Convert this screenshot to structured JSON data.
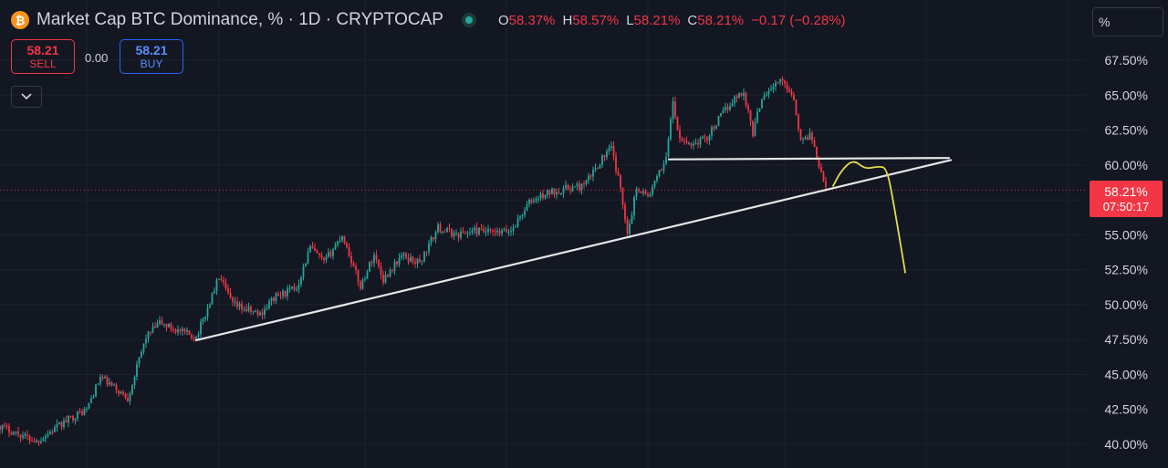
{
  "header": {
    "coin_icon": "bitcoin-icon",
    "coin_glyph": "₿",
    "title": "Market Cap BTC Dominance, % · 1D · CRYPTOCAP",
    "ohlc": {
      "o_label": "O",
      "o_value": "58.37%",
      "h_label": "H",
      "h_value": "58.57%",
      "l_label": "L",
      "l_value": "58.21%",
      "c_label": "C",
      "c_value": "58.21%",
      "change": "−0.17 (−0.28%)"
    }
  },
  "trade": {
    "sell_price": "58.21",
    "sell_label": "SELL",
    "spread": "0.00",
    "buy_price": "58.21",
    "buy_label": "BUY"
  },
  "scale_button": "%",
  "price_tag": {
    "value": "58.21%",
    "countdown": "07:50:17"
  },
  "colors": {
    "up": "#26a69a",
    "down": "#f23645",
    "background": "#131722",
    "trendline": "#e6e6e6",
    "projection": "#e2dc4c"
  },
  "chart_data": {
    "type": "candlestick",
    "ylim": [
      39.3,
      69.3
    ],
    "y_ticks": [
      "40.00%",
      "42.50%",
      "45.00%",
      "47.50%",
      "50.00%",
      "52.50%",
      "55.00%",
      "57.50%",
      "60.00%",
      "62.50%",
      "65.00%",
      "67.50%"
    ],
    "y_tick_values": [
      40,
      42.5,
      45,
      47.5,
      50,
      52.5,
      55,
      57.5,
      60,
      62.5,
      65,
      67.5
    ],
    "last_close": 58.21,
    "price_path": [
      [
        0,
        41.3
      ],
      [
        40,
        40.2
      ],
      [
        80,
        42.0
      ],
      [
        95,
        42.5
      ],
      [
        110,
        44.8
      ],
      [
        140,
        43.3
      ],
      [
        150,
        45.5
      ],
      [
        160,
        47.7
      ],
      [
        175,
        48.7
      ],
      [
        200,
        48.0
      ],
      [
        215,
        47.7
      ],
      [
        225,
        49.3
      ],
      [
        240,
        52.0
      ],
      [
        255,
        50.0
      ],
      [
        285,
        49.3
      ],
      [
        300,
        50.5
      ],
      [
        325,
        51.2
      ],
      [
        340,
        54.1
      ],
      [
        355,
        53.0
      ],
      [
        375,
        55.0
      ],
      [
        395,
        51.3
      ],
      [
        410,
        53.6
      ],
      [
        420,
        51.8
      ],
      [
        440,
        53.5
      ],
      [
        460,
        53.0
      ],
      [
        480,
        55.5
      ],
      [
        500,
        55.0
      ],
      [
        520,
        55.3
      ],
      [
        545,
        55.1
      ],
      [
        560,
        55.3
      ],
      [
        580,
        57.3
      ],
      [
        600,
        58.0
      ],
      [
        620,
        58.3
      ],
      [
        640,
        58.5
      ],
      [
        660,
        60.5
      ],
      [
        670,
        61.2
      ],
      [
        680,
        58.3
      ],
      [
        688,
        55.1
      ],
      [
        698,
        58.5
      ],
      [
        710,
        57.7
      ],
      [
        720,
        59.0
      ],
      [
        730,
        60.6
      ],
      [
        737,
        64.5
      ],
      [
        745,
        61.7
      ],
      [
        760,
        61.5
      ],
      [
        775,
        62.0
      ],
      [
        790,
        63.5
      ],
      [
        805,
        64.8
      ],
      [
        815,
        65.2
      ],
      [
        825,
        62.3
      ],
      [
        835,
        64.9
      ],
      [
        845,
        65.5
      ],
      [
        855,
        66.0
      ],
      [
        862,
        65.7
      ],
      [
        870,
        64.8
      ],
      [
        878,
        61.5
      ],
      [
        888,
        62.3
      ],
      [
        898,
        60.0
      ],
      [
        906,
        58.3
      ]
    ],
    "annotations": [
      {
        "type": "trendline",
        "points": [
          [
            215,
            47.45
          ],
          [
            1042,
            60.35
          ]
        ]
      },
      {
        "type": "trendline",
        "points": [
          [
            733,
            60.4
          ],
          [
            1040,
            60.5
          ]
        ]
      },
      {
        "type": "projection",
        "points": [
          [
            913,
            58.5
          ],
          [
            922,
            59.6
          ],
          [
            935,
            60.4
          ],
          [
            948,
            59.7
          ],
          [
            962,
            59.9
          ],
          [
            972,
            59.8
          ],
          [
            980,
            57.0
          ],
          [
            987,
            54.3
          ],
          [
            992,
            52.3
          ]
        ]
      }
    ]
  }
}
